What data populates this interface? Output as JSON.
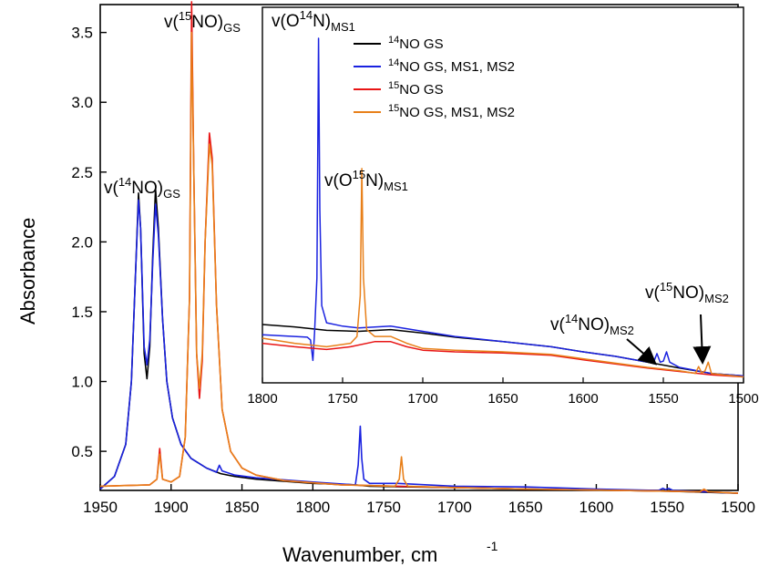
{
  "chart_data": [
    {
      "type": "line",
      "name": "main",
      "xlabel": "Wavenumber, cm",
      "xlabel_sup": "-1",
      "ylabel": "Absorbance",
      "xlim": [
        1950,
        1500
      ],
      "ylim": [
        0.22,
        3.7
      ],
      "xticks": [
        "1950",
        "1900",
        "1850",
        "1800",
        "1750",
        "1700",
        "1650",
        "1600",
        "1550",
        "1500"
      ],
      "yticks": [
        "0.5",
        "1.0",
        "1.5",
        "2.0",
        "2.5",
        "3.0",
        "3.5"
      ],
      "series": [
        {
          "color": "#000000",
          "points": [
            [
              1950,
              0.23
            ],
            [
              1940,
              0.32
            ],
            [
              1932,
              0.55
            ],
            [
              1928,
              1.0
            ],
            [
              1925,
              1.8
            ],
            [
              1923,
              2.35
            ],
            [
              1921.5,
              2.1
            ],
            [
              1919,
              1.2
            ],
            [
              1917,
              1.02
            ],
            [
              1915,
              1.25
            ],
            [
              1913,
              1.9
            ],
            [
              1911,
              2.38
            ],
            [
              1909,
              2.1
            ],
            [
              1906,
              1.45
            ],
            [
              1903,
              1.0
            ],
            [
              1899,
              0.74
            ],
            [
              1893,
              0.55
            ],
            [
              1886,
              0.45
            ],
            [
              1875,
              0.38
            ],
            [
              1865,
              0.34
            ],
            [
              1855,
              0.32
            ],
            [
              1840,
              0.3
            ],
            [
              1800,
              0.27
            ],
            [
              1770,
              0.26
            ],
            [
              1760,
              0.25
            ],
            [
              1700,
              0.24
            ],
            [
              1650,
              0.23
            ],
            [
              1550,
              0.215
            ],
            [
              1500,
              0.2
            ]
          ]
        },
        {
          "color": "#1a22e0",
          "points": [
            [
              1950,
              0.23
            ],
            [
              1940,
              0.32
            ],
            [
              1932,
              0.55
            ],
            [
              1928,
              1.0
            ],
            [
              1925,
              1.8
            ],
            [
              1923,
              2.3
            ],
            [
              1921.5,
              2.1
            ],
            [
              1919,
              1.25
            ],
            [
              1917,
              1.12
            ],
            [
              1915,
              1.3
            ],
            [
              1913,
              1.85
            ],
            [
              1911,
              2.27
            ],
            [
              1909,
              2.05
            ],
            [
              1906,
              1.45
            ],
            [
              1903,
              1.0
            ],
            [
              1899,
              0.74
            ],
            [
              1893,
              0.55
            ],
            [
              1886,
              0.45
            ],
            [
              1875,
              0.38
            ],
            [
              1868,
              0.35
            ],
            [
              1866,
              0.4
            ],
            [
              1864,
              0.36
            ],
            [
              1855,
              0.33
            ],
            [
              1840,
              0.31
            ],
            [
              1800,
              0.28
            ],
            [
              1770,
              0.26
            ],
            [
              1768,
              0.4
            ],
            [
              1766.5,
              0.68
            ],
            [
              1765.5,
              0.45
            ],
            [
              1764,
              0.3
            ],
            [
              1760,
              0.27
            ],
            [
              1740,
              0.27
            ],
            [
              1700,
              0.25
            ],
            [
              1650,
              0.245
            ],
            [
              1600,
              0.23
            ],
            [
              1556,
              0.22
            ],
            [
              1553,
              0.235
            ],
            [
              1551,
              0.225
            ],
            [
              1549,
              0.235
            ],
            [
              1546,
              0.22
            ],
            [
              1500,
              0.2
            ]
          ]
        },
        {
          "color": "#e81515",
          "points": [
            [
              1950,
              0.25
            ],
            [
              1915,
              0.26
            ],
            [
              1910,
              0.3
            ],
            [
              1908,
              0.52
            ],
            [
              1906,
              0.3
            ],
            [
              1900,
              0.28
            ],
            [
              1894,
              0.32
            ],
            [
              1890,
              0.6
            ],
            [
              1887,
              1.6
            ],
            [
              1885.5,
              3.72
            ],
            [
              1884,
              2.5
            ],
            [
              1882,
              1.2
            ],
            [
              1880,
              0.88
            ],
            [
              1878,
              1.15
            ],
            [
              1876,
              2.0
            ],
            [
              1873,
              2.78
            ],
            [
              1871,
              2.6
            ],
            [
              1868,
              1.55
            ],
            [
              1864,
              0.8
            ],
            [
              1858,
              0.5
            ],
            [
              1850,
              0.38
            ],
            [
              1840,
              0.33
            ],
            [
              1820,
              0.29
            ],
            [
              1780,
              0.26
            ],
            [
              1740,
              0.25
            ],
            [
              1700,
              0.24
            ],
            [
              1650,
              0.23
            ],
            [
              1550,
              0.215
            ],
            [
              1527,
              0.21
            ],
            [
              1524,
              0.225
            ],
            [
              1521,
              0.21
            ],
            [
              1500,
              0.2
            ]
          ]
        },
        {
          "color": "#e8801a",
          "points": [
            [
              1950,
              0.25
            ],
            [
              1915,
              0.26
            ],
            [
              1910,
              0.3
            ],
            [
              1908,
              0.48
            ],
            [
              1906,
              0.3
            ],
            [
              1900,
              0.28
            ],
            [
              1894,
              0.32
            ],
            [
              1890,
              0.6
            ],
            [
              1887,
              1.6
            ],
            [
              1885.5,
              3.5
            ],
            [
              1884,
              2.5
            ],
            [
              1882,
              1.2
            ],
            [
              1880,
              0.95
            ],
            [
              1878,
              1.2
            ],
            [
              1876,
              2.0
            ],
            [
              1873,
              2.7
            ],
            [
              1871,
              2.55
            ],
            [
              1868,
              1.55
            ],
            [
              1864,
              0.8
            ],
            [
              1858,
              0.5
            ],
            [
              1850,
              0.38
            ],
            [
              1840,
              0.33
            ],
            [
              1820,
              0.29
            ],
            [
              1780,
              0.26
            ],
            [
              1742,
              0.25
            ],
            [
              1739,
              0.3
            ],
            [
              1737.5,
              0.46
            ],
            [
              1736,
              0.3
            ],
            [
              1733,
              0.25
            ],
            [
              1700,
              0.24
            ],
            [
              1650,
              0.23
            ],
            [
              1550,
              0.215
            ],
            [
              1527,
              0.21
            ],
            [
              1524,
              0.23
            ],
            [
              1521,
              0.21
            ],
            [
              1500,
              0.2
            ]
          ]
        }
      ],
      "annotations": [
        {
          "label": "v(",
          "sup": "14",
          "rest": "NO)",
          "sub": "GS"
        },
        {
          "label": "v(",
          "sup": "15",
          "rest": "NO)",
          "sub": "GS"
        }
      ]
    },
    {
      "type": "line",
      "name": "inset",
      "xlim": [
        1800,
        1500
      ],
      "ylim": [
        0,
        1
      ],
      "xticks": [
        "1800",
        "1750",
        "1700",
        "1650",
        "1600",
        "1550",
        "1500"
      ],
      "legend": [
        {
          "color": "#000000",
          "sup": "14",
          "label": "NO GS"
        },
        {
          "color": "#1a22e0",
          "sup": "14",
          "label": "NO GS, MS1, MS2"
        },
        {
          "color": "#e81515",
          "sup": "15",
          "label": "NO GS"
        },
        {
          "color": "#e8801a",
          "sup": "15",
          "label": "NO GS, MS1, MS2"
        }
      ],
      "series": [
        {
          "color": "#000000",
          "points": [
            [
              1800,
              0.165
            ],
            [
              1780,
              0.158
            ],
            [
              1760,
              0.148
            ],
            [
              1740,
              0.145
            ],
            [
              1720,
              0.15
            ],
            [
              1700,
              0.14
            ],
            [
              1680,
              0.128
            ],
            [
              1650,
              0.115
            ],
            [
              1620,
              0.1
            ],
            [
              1600,
              0.085
            ],
            [
              1580,
              0.072
            ],
            [
              1560,
              0.055
            ],
            [
              1540,
              0.038
            ],
            [
              1520,
              0.022
            ],
            [
              1500,
              0.015
            ]
          ]
        },
        {
          "color": "#1a22e0",
          "points": [
            [
              1800,
              0.135
            ],
            [
              1780,
              0.13
            ],
            [
              1772,
              0.128
            ],
            [
              1770,
              0.12
            ],
            [
              1768.5,
              0.06
            ],
            [
              1767.5,
              0.14
            ],
            [
              1766,
              0.3
            ],
            [
              1765,
              1.0
            ],
            [
              1764.2,
              0.5
            ],
            [
              1763,
              0.22
            ],
            [
              1760,
              0.17
            ],
            [
              1750,
              0.16
            ],
            [
              1740,
              0.155
            ],
            [
              1720,
              0.16
            ],
            [
              1700,
              0.145
            ],
            [
              1680,
              0.13
            ],
            [
              1650,
              0.115
            ],
            [
              1620,
              0.1
            ],
            [
              1600,
              0.085
            ],
            [
              1580,
              0.072
            ],
            [
              1560,
              0.055
            ],
            [
              1556,
              0.055
            ],
            [
              1554,
              0.08
            ],
            [
              1552,
              0.055
            ],
            [
              1550,
              0.058
            ],
            [
              1548,
              0.085
            ],
            [
              1546,
              0.055
            ],
            [
              1540,
              0.04
            ],
            [
              1520,
              0.022
            ],
            [
              1500,
              0.015
            ]
          ]
        },
        {
          "color": "#e81515",
          "points": [
            [
              1800,
              0.11
            ],
            [
              1780,
              0.1
            ],
            [
              1760,
              0.092
            ],
            [
              1745,
              0.1
            ],
            [
              1730,
              0.115
            ],
            [
              1720,
              0.115
            ],
            [
              1710,
              0.1
            ],
            [
              1700,
              0.09
            ],
            [
              1680,
              0.085
            ],
            [
              1650,
              0.082
            ],
            [
              1620,
              0.075
            ],
            [
              1600,
              0.062
            ],
            [
              1580,
              0.05
            ],
            [
              1560,
              0.038
            ],
            [
              1540,
              0.028
            ],
            [
              1520,
              0.018
            ],
            [
              1500,
              0.012
            ]
          ]
        },
        {
          "color": "#e8801a",
          "points": [
            [
              1800,
              0.125
            ],
            [
              1780,
              0.11
            ],
            [
              1760,
              0.1
            ],
            [
              1745,
              0.11
            ],
            [
              1741,
              0.13
            ],
            [
              1739,
              0.25
            ],
            [
              1738,
              0.62
            ],
            [
              1737,
              0.3
            ],
            [
              1735,
              0.15
            ],
            [
              1730,
              0.13
            ],
            [
              1720,
              0.13
            ],
            [
              1710,
              0.11
            ],
            [
              1700,
              0.095
            ],
            [
              1680,
              0.09
            ],
            [
              1650,
              0.085
            ],
            [
              1620,
              0.078
            ],
            [
              1600,
              0.065
            ],
            [
              1580,
              0.052
            ],
            [
              1560,
              0.04
            ],
            [
              1540,
              0.03
            ],
            [
              1530,
              0.022
            ],
            [
              1528,
              0.042
            ],
            [
              1526,
              0.024
            ],
            [
              1524,
              0.03
            ],
            [
              1522,
              0.055
            ],
            [
              1520,
              0.022
            ],
            [
              1500,
              0.012
            ]
          ]
        }
      ],
      "annotations": [
        {
          "label": "v(O",
          "sup": "14",
          "rest": "N)",
          "sub": "MS1"
        },
        {
          "label": "v(O",
          "sup": "15",
          "rest": "N)",
          "sub": "MS1"
        },
        {
          "label": "v(",
          "sup": "14",
          "rest": "NO)",
          "sub": "MS2"
        },
        {
          "label": "v(",
          "sup": "15",
          "rest": "NO)",
          "sub": "MS2"
        }
      ]
    }
  ]
}
